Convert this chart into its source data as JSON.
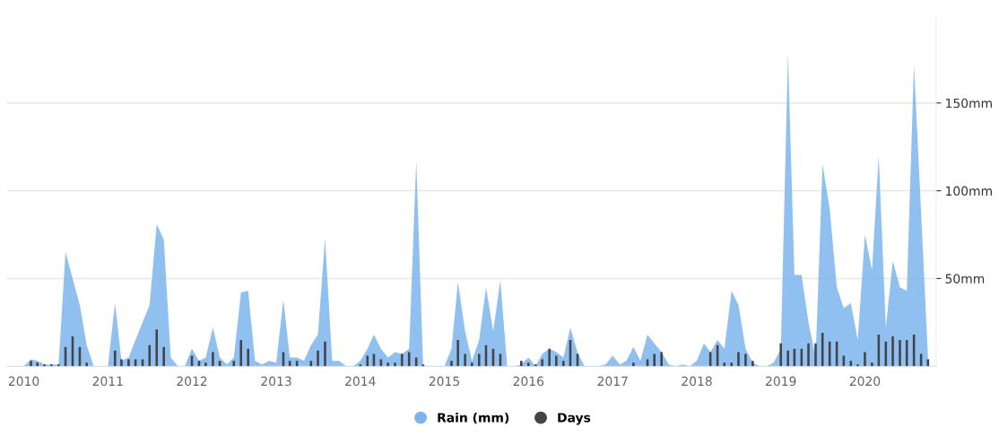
{
  "chart_data": {
    "type": "area",
    "x": [
      "2010-01",
      "2010-02",
      "2010-03",
      "2010-04",
      "2010-05",
      "2010-06",
      "2010-07",
      "2010-08",
      "2010-09",
      "2010-10",
      "2010-11",
      "2010-12",
      "2011-01",
      "2011-02",
      "2011-03",
      "2011-04",
      "2011-05",
      "2011-06",
      "2011-07",
      "2011-08",
      "2011-09",
      "2011-10",
      "2011-11",
      "2011-12",
      "2012-01",
      "2012-02",
      "2012-03",
      "2012-04",
      "2012-05",
      "2012-06",
      "2012-07",
      "2012-08",
      "2012-09",
      "2012-10",
      "2012-11",
      "2012-12",
      "2013-01",
      "2013-02",
      "2013-03",
      "2013-04",
      "2013-05",
      "2013-06",
      "2013-07",
      "2013-08",
      "2013-09",
      "2013-10",
      "2013-11",
      "2013-12",
      "2014-01",
      "2014-02",
      "2014-03",
      "2014-04",
      "2014-05",
      "2014-06",
      "2014-07",
      "2014-08",
      "2014-09",
      "2014-10",
      "2014-11",
      "2014-12",
      "2015-01",
      "2015-02",
      "2015-03",
      "2015-04",
      "2015-05",
      "2015-06",
      "2015-07",
      "2015-08",
      "2015-09",
      "2015-10",
      "2015-11",
      "2015-12",
      "2016-01",
      "2016-02",
      "2016-03",
      "2016-04",
      "2016-05",
      "2016-06",
      "2016-07",
      "2016-08",
      "2016-09",
      "2016-10",
      "2016-11",
      "2016-12",
      "2017-01",
      "2017-02",
      "2017-03",
      "2017-04",
      "2017-05",
      "2017-06",
      "2017-07",
      "2017-08",
      "2017-09",
      "2017-10",
      "2017-11",
      "2017-12",
      "2018-01",
      "2018-02",
      "2018-03",
      "2018-04",
      "2018-05",
      "2018-06",
      "2018-07",
      "2018-08",
      "2018-09",
      "2018-10",
      "2018-11",
      "2018-12",
      "2019-01",
      "2019-02",
      "2019-03",
      "2019-04",
      "2019-05",
      "2019-06",
      "2019-07",
      "2019-08",
      "2019-09",
      "2019-10",
      "2019-11",
      "2019-12",
      "2020-01",
      "2020-02",
      "2020-03",
      "2020-04",
      "2020-05",
      "2020-06",
      "2020-07",
      "2020-08",
      "2020-09",
      "2020-10"
    ],
    "series": [
      {
        "name": "Rain (mm)",
        "color": "#7cb5ec",
        "values": [
          0,
          4,
          3,
          1,
          1,
          1,
          65,
          50,
          35,
          12,
          0,
          0,
          0,
          36,
          3,
          5,
          15,
          25,
          35,
          81,
          72,
          5,
          0,
          0,
          10,
          3,
          5,
          22,
          5,
          1,
          5,
          42,
          43,
          3,
          1,
          3,
          2,
          38,
          5,
          5,
          3,
          12,
          18,
          73,
          3,
          3,
          0,
          0,
          3,
          10,
          18,
          10,
          5,
          8,
          7,
          10,
          117,
          0,
          0,
          0,
          0,
          10,
          48,
          20,
          3,
          15,
          45,
          20,
          49,
          0,
          0,
          1,
          5,
          0,
          7,
          10,
          8,
          5,
          22,
          8,
          0,
          0,
          0,
          1,
          6,
          1,
          3,
          11,
          3,
          18,
          13,
          8,
          1,
          0,
          1,
          0,
          3,
          13,
          8,
          15,
          10,
          43,
          35,
          10,
          2,
          0,
          0,
          2,
          10,
          178,
          52,
          52,
          25,
          5,
          115,
          90,
          45,
          33,
          36,
          15,
          75,
          55,
          120,
          22,
          60,
          45,
          43,
          172,
          88,
          5
        ]
      },
      {
        "name": "Days",
        "type": "bar",
        "color": "#434348",
        "values": [
          0,
          3,
          2,
          1,
          1,
          1,
          11,
          17,
          11,
          2,
          0,
          0,
          0,
          9,
          4,
          4,
          4,
          4,
          12,
          21,
          11,
          0,
          0,
          0,
          6,
          3,
          2,
          8,
          3,
          0,
          3,
          15,
          10,
          0,
          0,
          0,
          0,
          8,
          3,
          3,
          0,
          3,
          9,
          14,
          0,
          0,
          0,
          0,
          1,
          6,
          7,
          4,
          2,
          2,
          7,
          8,
          5,
          1,
          0,
          0,
          0,
          3,
          15,
          7,
          2,
          7,
          12,
          10,
          7,
          0,
          0,
          3,
          2,
          1,
          4,
          10,
          6,
          3,
          15,
          7,
          0,
          0,
          0,
          0,
          0,
          0,
          0,
          2,
          0,
          4,
          7,
          8,
          0,
          0,
          0,
          0,
          0,
          0,
          8,
          12,
          2,
          2,
          8,
          7,
          3,
          0,
          0,
          0,
          13,
          9,
          10,
          10,
          13,
          13,
          19,
          14,
          14,
          6,
          3,
          1,
          8,
          2,
          18,
          14,
          17,
          15,
          15,
          18,
          7,
          4
        ]
      }
    ],
    "xlim": [
      "2009-10-20",
      "2020-11-05"
    ],
    "xticks": [
      "2010",
      "2011",
      "2012",
      "2013",
      "2014",
      "2015",
      "2016",
      "2017",
      "2018",
      "2019",
      "2020"
    ],
    "ylim": [
      0,
      200
    ],
    "yticks": [
      {
        "value": 50,
        "label": "50mm"
      },
      {
        "value": 100,
        "label": "100mm"
      },
      {
        "value": 150,
        "label": "150mm"
      }
    ],
    "grid": "y",
    "legend": "bottom"
  }
}
